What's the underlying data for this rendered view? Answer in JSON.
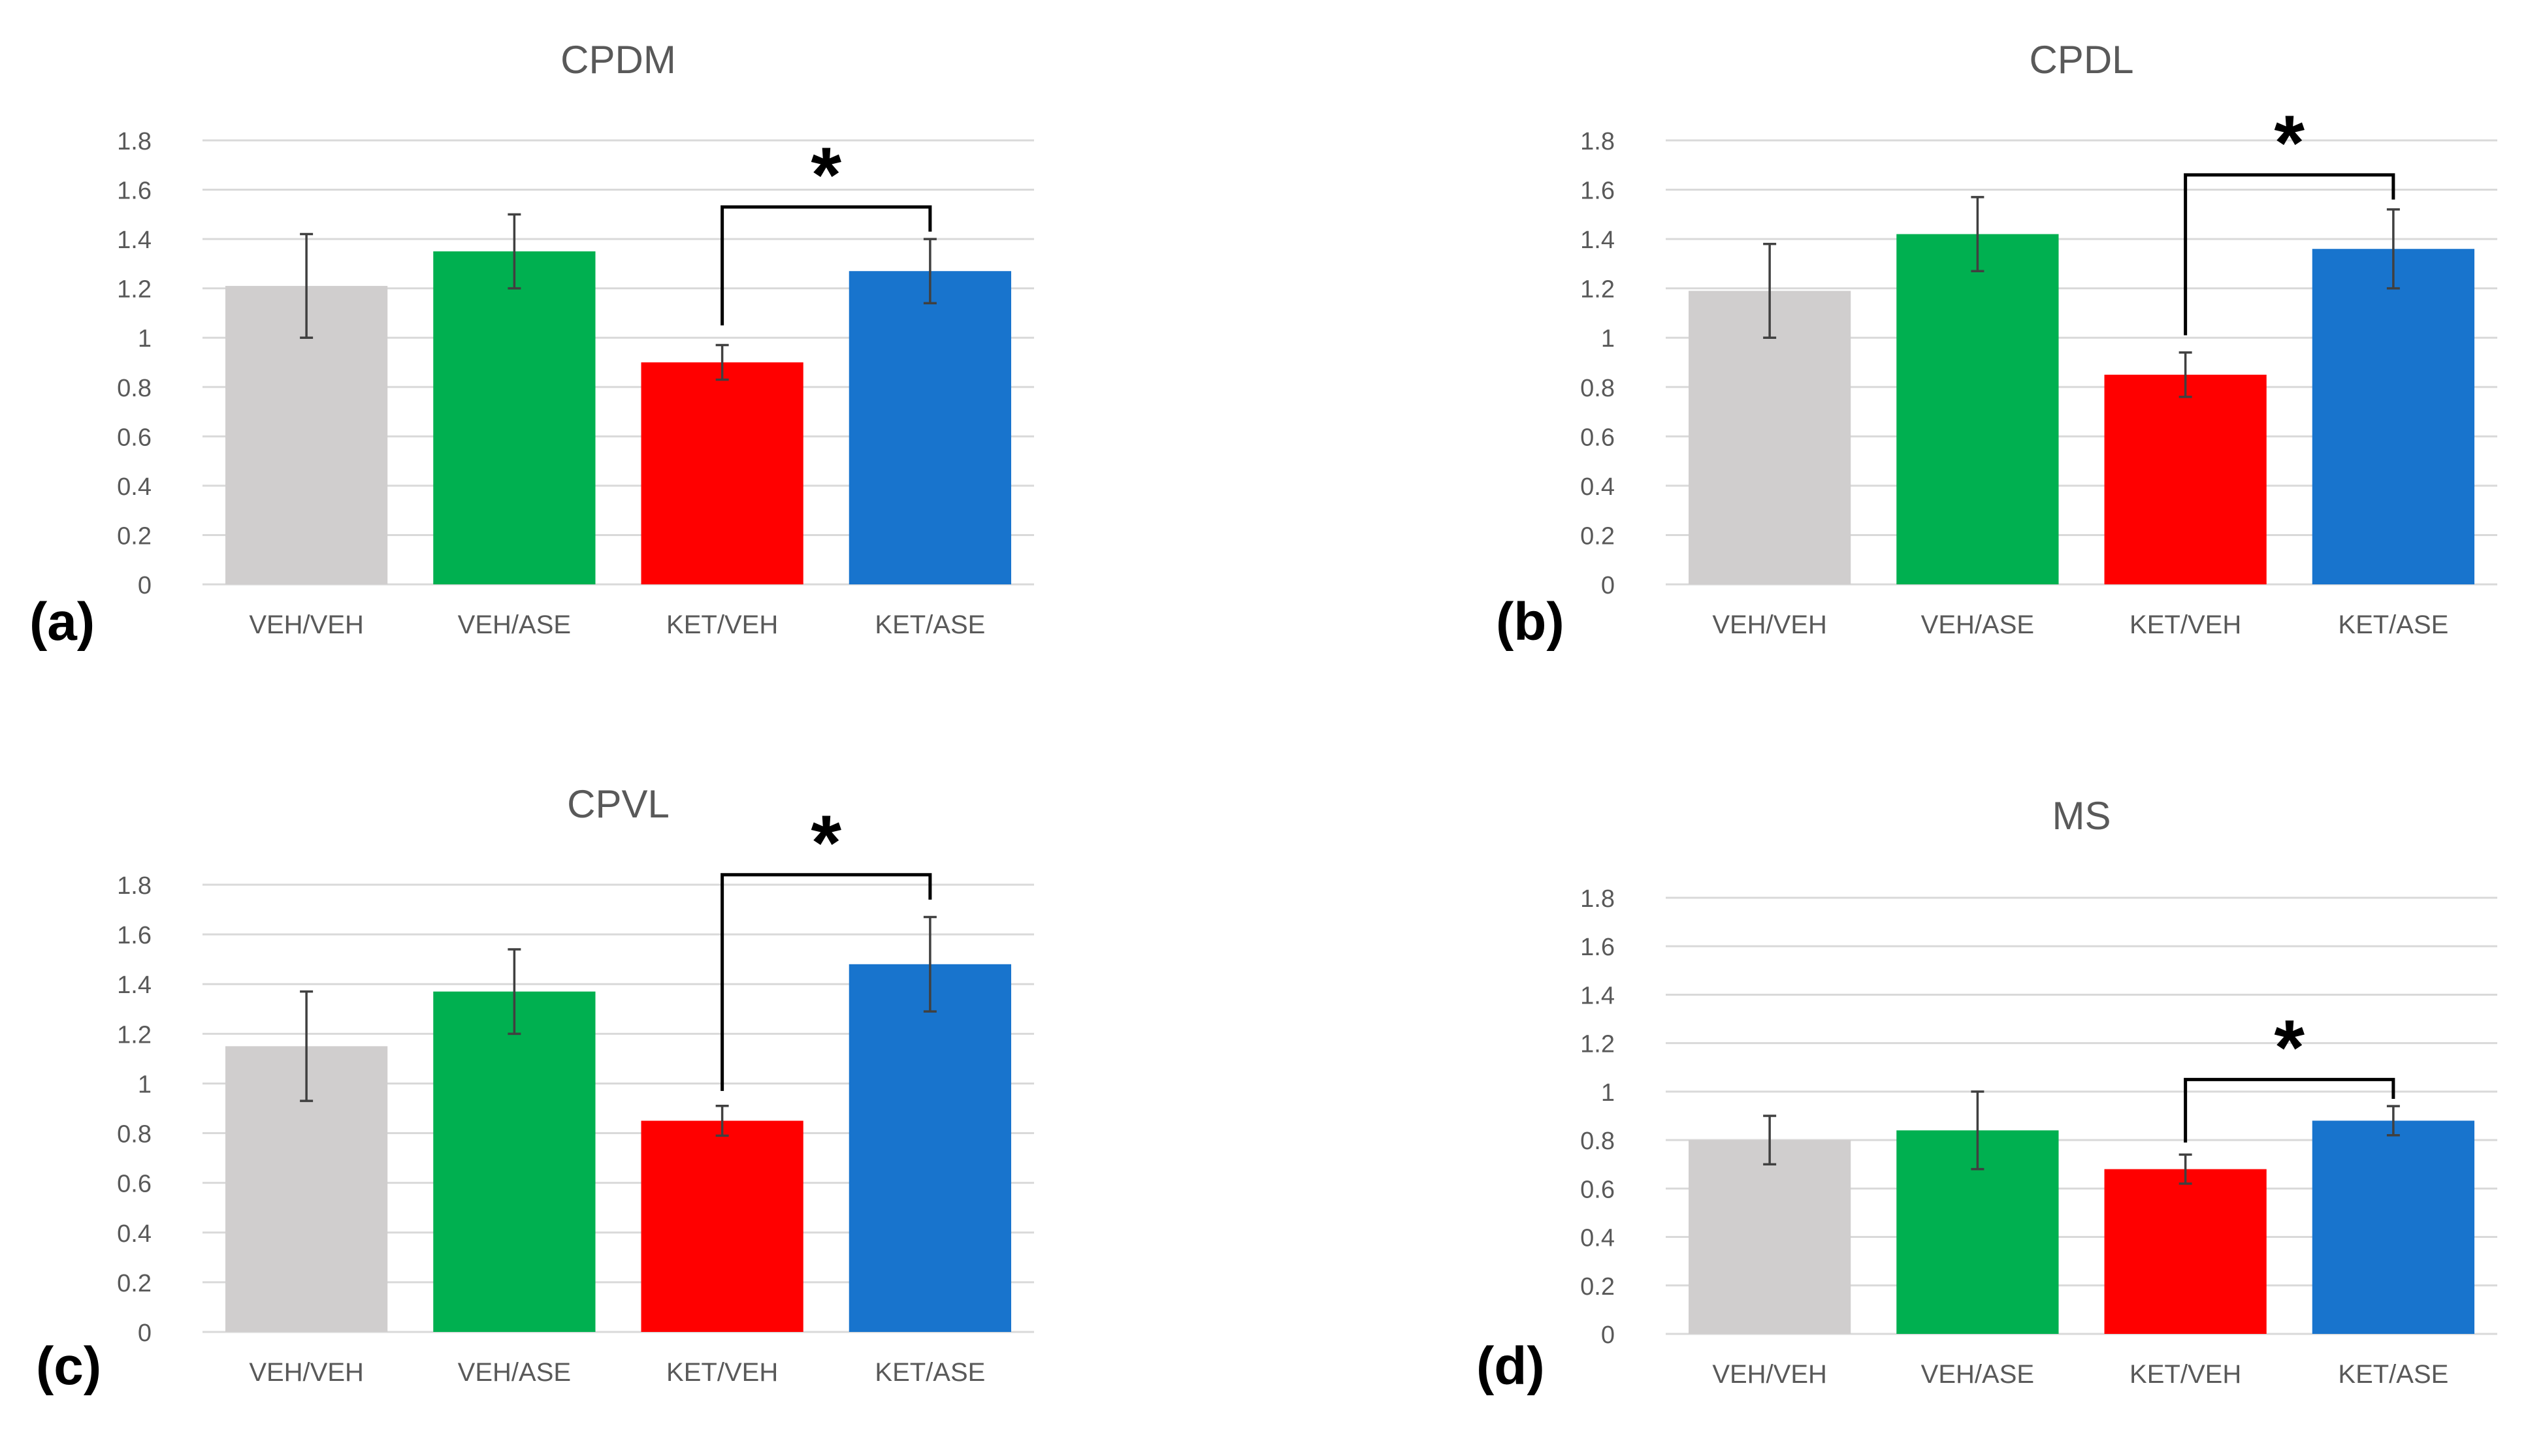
{
  "colors": {
    "VEH/VEH": "#d0cece",
    "VEH/ASE": "#00b050",
    "KET/VEH": "#ff0000",
    "KET/ASE": "#1874cd",
    "gridline": "#d9d9d9",
    "axis_text": "#595959",
    "title_text": "#595959",
    "error_bar": "#404040",
    "bracket": "#000000"
  },
  "chart_data": [
    {
      "type": "bar",
      "panel_label": "(a)",
      "title": "CPDM",
      "categories": [
        "VEH/VEH",
        "VEH/ASE",
        "KET/VEH",
        "KET/ASE"
      ],
      "values": [
        1.21,
        1.35,
        0.9,
        1.27
      ],
      "errors": [
        0.21,
        0.15,
        0.07,
        0.13
      ],
      "ylim": [
        0,
        1.8
      ],
      "yticks": [
        "0",
        "0.2",
        "0.4",
        "0.6",
        "0.8",
        "1",
        "1.2",
        "1.4",
        "1.6",
        "1.8"
      ],
      "xlabel": "",
      "ylabel": "",
      "grid": true,
      "significance": {
        "from": "KET/VEH",
        "to": "KET/ASE",
        "top": 1.53,
        "left_end": 1.05,
        "right_end": 1.43,
        "mark": "*"
      }
    },
    {
      "type": "bar",
      "panel_label": "(b)",
      "title": "CPDL",
      "categories": [
        "VEH/VEH",
        "VEH/ASE",
        "KET/VEH",
        "KET/ASE"
      ],
      "values": [
        1.19,
        1.42,
        0.85,
        1.36
      ],
      "errors": [
        0.19,
        0.15,
        0.09,
        0.16
      ],
      "ylim": [
        0,
        1.8
      ],
      "yticks": [
        "0",
        "0.2",
        "0.4",
        "0.6",
        "0.8",
        "1",
        "1.2",
        "1.4",
        "1.6",
        "1.8"
      ],
      "xlabel": "",
      "ylabel": "",
      "grid": true,
      "significance": {
        "from": "KET/VEH",
        "to": "KET/ASE",
        "top": 1.66,
        "left_end": 1.01,
        "right_end": 1.56,
        "mark": "*"
      }
    },
    {
      "type": "bar",
      "panel_label": "(c)",
      "title": "CPVL",
      "categories": [
        "VEH/VEH",
        "VEH/ASE",
        "KET/VEH",
        "KET/ASE"
      ],
      "values": [
        1.15,
        1.37,
        0.85,
        1.48
      ],
      "errors": [
        0.22,
        0.17,
        0.06,
        0.19
      ],
      "ylim": [
        0,
        1.8
      ],
      "yticks": [
        "0",
        "0.2",
        "0.4",
        "0.6",
        "0.8",
        "1",
        "1.2",
        "1.4",
        "1.6",
        "1.8"
      ],
      "xlabel": "",
      "ylabel": "",
      "grid": true,
      "significance": {
        "from": "KET/VEH",
        "to": "KET/ASE",
        "top": 1.84,
        "left_end": 0.97,
        "right_end": 1.74,
        "mark": "*"
      }
    },
    {
      "type": "bar",
      "panel_label": "(d)",
      "title": "MS",
      "categories": [
        "VEH/VEH",
        "VEH/ASE",
        "KET/VEH",
        "KET/ASE"
      ],
      "values": [
        0.8,
        0.84,
        0.68,
        0.88
      ],
      "errors": [
        0.1,
        0.16,
        0.06,
        0.06
      ],
      "ylim": [
        0,
        1.8
      ],
      "yticks": [
        "0",
        "0.2",
        "0.4",
        "0.6",
        "0.8",
        "1",
        "1.2",
        "1.4",
        "1.6",
        "1.8"
      ],
      "xlabel": "",
      "ylabel": "",
      "grid": true,
      "significance": {
        "from": "KET/VEH",
        "to": "KET/ASE",
        "top": 1.05,
        "left_end": 0.79,
        "right_end": 0.97,
        "mark": "*"
      }
    }
  ]
}
